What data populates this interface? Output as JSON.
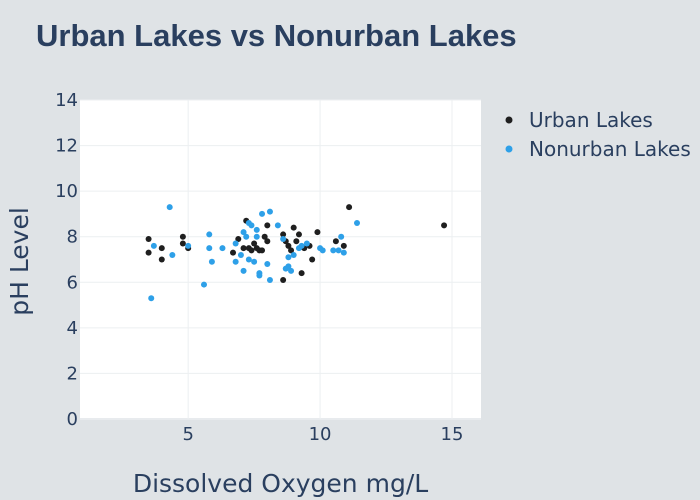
{
  "chart_data": {
    "type": "scatter",
    "title": "Urban Lakes vs Nonurban Lakes",
    "xlabel": "Dissolved Oxygen mg/L",
    "ylabel": "pH Level",
    "xlim": [
      0.9,
      16.1
    ],
    "ylim": [
      0,
      14
    ],
    "x_ticks": [
      5,
      10,
      15
    ],
    "y_ticks": [
      0,
      2,
      4,
      6,
      8,
      10,
      12,
      14
    ],
    "grid": true,
    "legend_position": "top-right",
    "series": [
      {
        "name": "Urban Lakes",
        "color": "#1f1f1f",
        "points": [
          [
            3.5,
            7.9
          ],
          [
            3.5,
            7.3
          ],
          [
            4.0,
            7.5
          ],
          [
            4.0,
            7.0
          ],
          [
            4.8,
            8.0
          ],
          [
            4.8,
            7.7
          ],
          [
            5.0,
            7.5
          ],
          [
            6.7,
            7.3
          ],
          [
            6.9,
            7.9
          ],
          [
            7.1,
            7.5
          ],
          [
            7.2,
            8.7
          ],
          [
            7.3,
            7.5
          ],
          [
            7.4,
            7.4
          ],
          [
            7.5,
            7.7
          ],
          [
            7.6,
            7.5
          ],
          [
            7.7,
            7.4
          ],
          [
            7.8,
            7.4
          ],
          [
            7.9,
            8.0
          ],
          [
            8.0,
            8.5
          ],
          [
            8.0,
            7.8
          ],
          [
            8.6,
            8.1
          ],
          [
            8.7,
            7.8
          ],
          [
            8.8,
            7.6
          ],
          [
            8.9,
            7.4
          ],
          [
            9.0,
            8.4
          ],
          [
            9.1,
            7.8
          ],
          [
            9.2,
            8.1
          ],
          [
            9.3,
            6.4
          ],
          [
            8.6,
            6.1
          ],
          [
            9.4,
            7.5
          ],
          [
            9.6,
            7.6
          ],
          [
            9.7,
            7.0
          ],
          [
            9.9,
            8.2
          ],
          [
            10.6,
            7.8
          ],
          [
            10.9,
            7.6
          ],
          [
            11.1,
            9.3
          ],
          [
            14.7,
            8.5
          ]
        ]
      },
      {
        "name": "Nonurban Lakes",
        "color": "#2ea0e8",
        "points": [
          [
            3.6,
            5.3
          ],
          [
            3.7,
            7.6
          ],
          [
            4.3,
            9.3
          ],
          [
            4.4,
            7.2
          ],
          [
            5.0,
            7.6
          ],
          [
            5.6,
            5.9
          ],
          [
            5.8,
            7.5
          ],
          [
            5.8,
            8.1
          ],
          [
            5.9,
            6.9
          ],
          [
            6.3,
            7.5
          ],
          [
            6.8,
            6.9
          ],
          [
            6.8,
            7.7
          ],
          [
            7.0,
            7.2
          ],
          [
            7.1,
            6.5
          ],
          [
            7.1,
            8.2
          ],
          [
            7.2,
            8.0
          ],
          [
            7.3,
            8.6
          ],
          [
            7.3,
            7.0
          ],
          [
            7.4,
            8.5
          ],
          [
            7.5,
            6.9
          ],
          [
            7.6,
            8.3
          ],
          [
            7.6,
            8.0
          ],
          [
            7.7,
            6.4
          ],
          [
            7.7,
            6.3
          ],
          [
            7.8,
            9.0
          ],
          [
            8.0,
            6.8
          ],
          [
            8.1,
            6.1
          ],
          [
            8.1,
            9.1
          ],
          [
            8.4,
            8.5
          ],
          [
            8.6,
            7.9
          ],
          [
            8.7,
            6.6
          ],
          [
            8.8,
            6.7
          ],
          [
            8.8,
            7.1
          ],
          [
            8.9,
            6.5
          ],
          [
            9.0,
            7.2
          ],
          [
            9.2,
            7.5
          ],
          [
            9.3,
            7.6
          ],
          [
            9.5,
            7.7
          ],
          [
            10.0,
            7.5
          ],
          [
            10.1,
            7.4
          ],
          [
            10.5,
            7.4
          ],
          [
            10.7,
            7.4
          ],
          [
            10.8,
            8.0
          ],
          [
            10.9,
            7.3
          ],
          [
            11.4,
            8.6
          ]
        ]
      }
    ]
  }
}
